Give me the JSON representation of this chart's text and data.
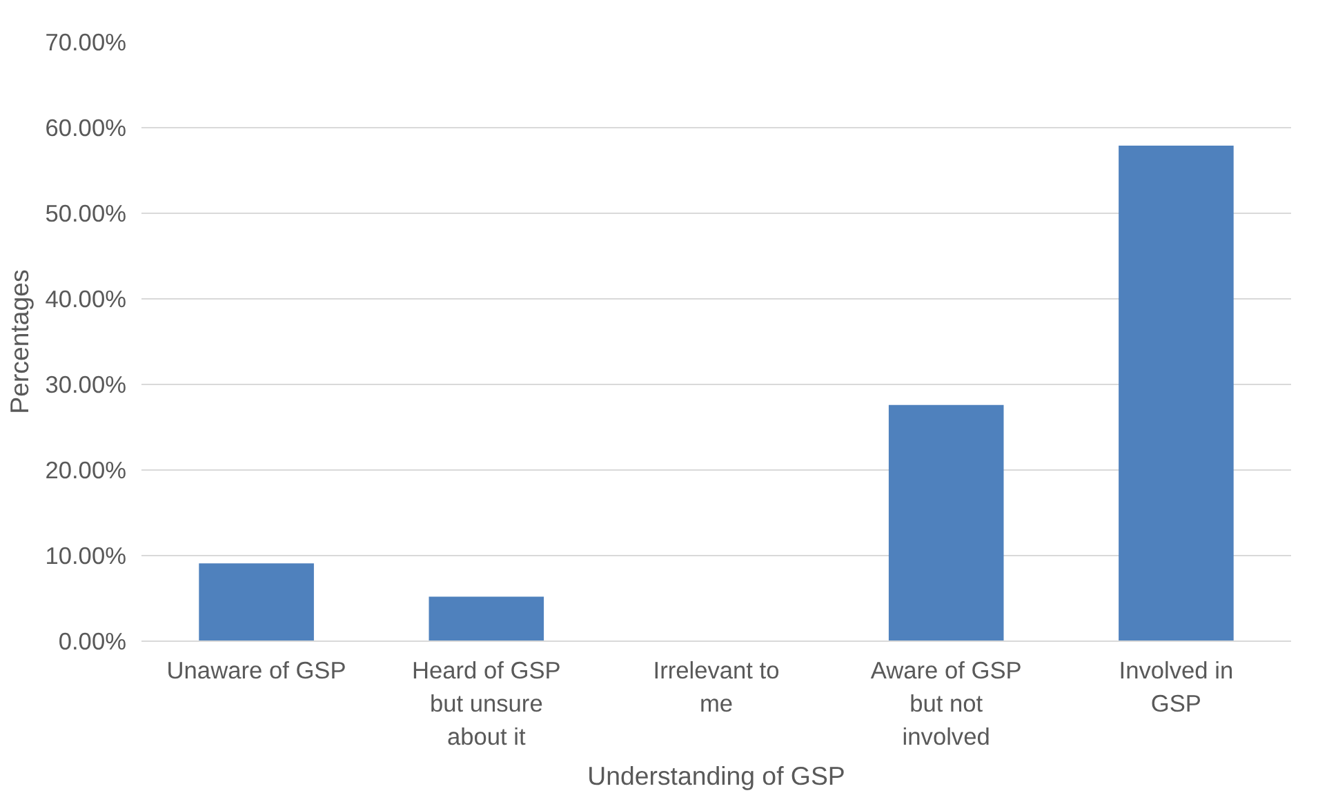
{
  "chart_data": {
    "type": "bar",
    "xlabel": "Understanding of GSP",
    "ylabel": "Percentages",
    "categories": [
      "Unaware of GSP",
      "Heard of GSP but unsure about it",
      "Irrelevant to me",
      "Aware of GSP but not involved",
      "Involved in GSP"
    ],
    "values": [
      9.1,
      5.2,
      0,
      27.6,
      57.9
    ],
    "color": "#4f81bd",
    "ylim": [
      0,
      70
    ],
    "yticks": [
      {
        "value": 0,
        "label": "0.00%"
      },
      {
        "value": 10,
        "label": "10.00%"
      },
      {
        "value": 20,
        "label": "20.00%"
      },
      {
        "value": 30,
        "label": "30.00%"
      },
      {
        "value": 40,
        "label": "40.00%"
      },
      {
        "value": 50,
        "label": "50.00%"
      },
      {
        "value": 60,
        "label": "60.00%"
      },
      {
        "value": 70,
        "label": "70.00%"
      }
    ],
    "grid": "y"
  }
}
